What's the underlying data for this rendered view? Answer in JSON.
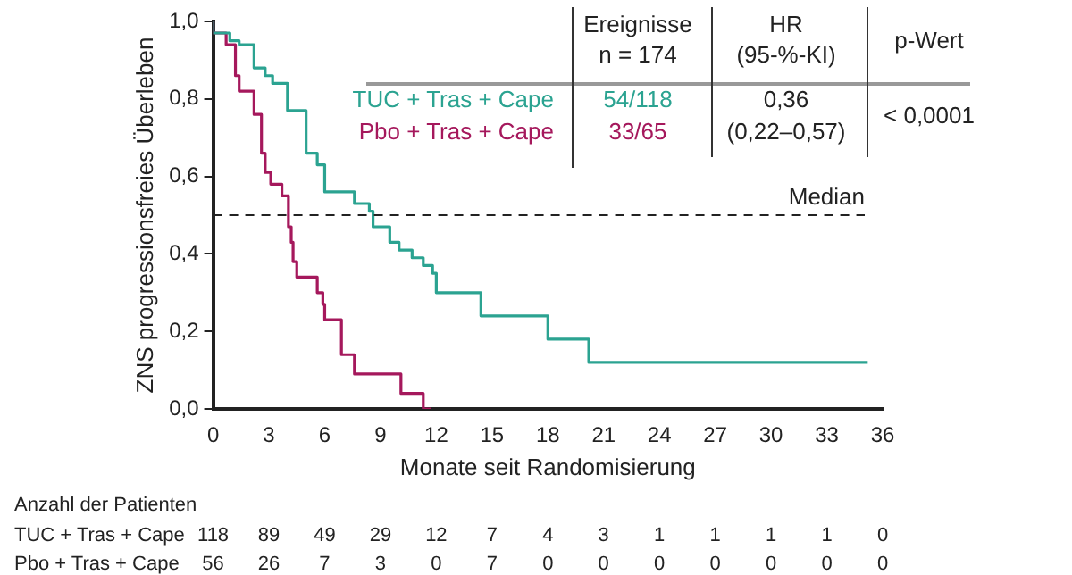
{
  "chart_data": {
    "type": "step",
    "xlabel": "Monate seit Randomisierung",
    "ylabel": "ZNS progressionsfreies Überleben",
    "xlim": [
      0,
      36
    ],
    "xticks": [
      0,
      3,
      6,
      9,
      12,
      15,
      18,
      21,
      24,
      27,
      30,
      33,
      36
    ],
    "ylim": [
      0,
      1
    ],
    "yticks": [
      {
        "value": 0,
        "label": "0,0"
      },
      {
        "value": 0.2,
        "label": "0,2"
      },
      {
        "value": 0.4,
        "label": "0,4"
      },
      {
        "value": 0.6,
        "label": "0,6"
      },
      {
        "value": 0.8,
        "label": "0,8"
      },
      {
        "value": 1,
        "label": "1,0"
      }
    ],
    "grid": false,
    "legend": "top right",
    "marker": "none",
    "series": [
      {
        "name": "TUC + Tras + Cape",
        "color": "#2ba391",
        "x": [
          0,
          0.9,
          1.4,
          2.2,
          2.8,
          3.2,
          4.0,
          5.0,
          5.6,
          6.0,
          7.6,
          8.4,
          8.6,
          9.5,
          10.0,
          10.7,
          11.3,
          11.8,
          12.0,
          14.4,
          18.0,
          20.2,
          22.5,
          35.2
        ],
        "values": [
          1,
          0.97,
          0.95,
          0.94,
          0.88,
          0.86,
          0.84,
          0.77,
          0.66,
          0.63,
          0.56,
          0.53,
          0.51,
          0.47,
          0.43,
          0.41,
          0.39,
          0.37,
          0.35,
          0.3,
          0.24,
          0.18,
          0.12,
          0.12
        ]
      },
      {
        "name": "Pbo + Tras + Cape",
        "color": "#a5185c",
        "x": [
          0,
          0.7,
          1.2,
          1.4,
          2.2,
          2.6,
          2.8,
          3.1,
          3.7,
          4.05,
          4.2,
          4.3,
          4.5,
          5.6,
          5.9,
          6.0,
          6.9,
          7.6,
          10.1,
          11.3,
          11.7
        ],
        "values": [
          1,
          0.97,
          0.94,
          0.86,
          0.82,
          0.76,
          0.66,
          0.61,
          0.58,
          0.55,
          0.47,
          0.43,
          0.38,
          0.34,
          0.3,
          0.27,
          0.23,
          0.14,
          0.09,
          0.04,
          0
        ]
      }
    ],
    "ref_lines": [
      {
        "axis": "y",
        "value": 0.5,
        "label": "Median",
        "line_style": "dashed",
        "color": "#222222"
      }
    ],
    "annotations": [
      "Ereignisse",
      "n = 174",
      "HR",
      "(95-%-KI)",
      "p-Wert",
      "54/118",
      "33/65",
      "0,36",
      "(0,22–0,57)",
      "< 0,0001",
      "Anzahl der Patienten",
      "TUC + Tras + Cape 118 89 49 29 12 7 4 3 1 1 1 1 0",
      "Pbo + Tras + Cape 56 26 7 3 0 7 0 0 0 0 0 0 0"
    ]
  }
}
